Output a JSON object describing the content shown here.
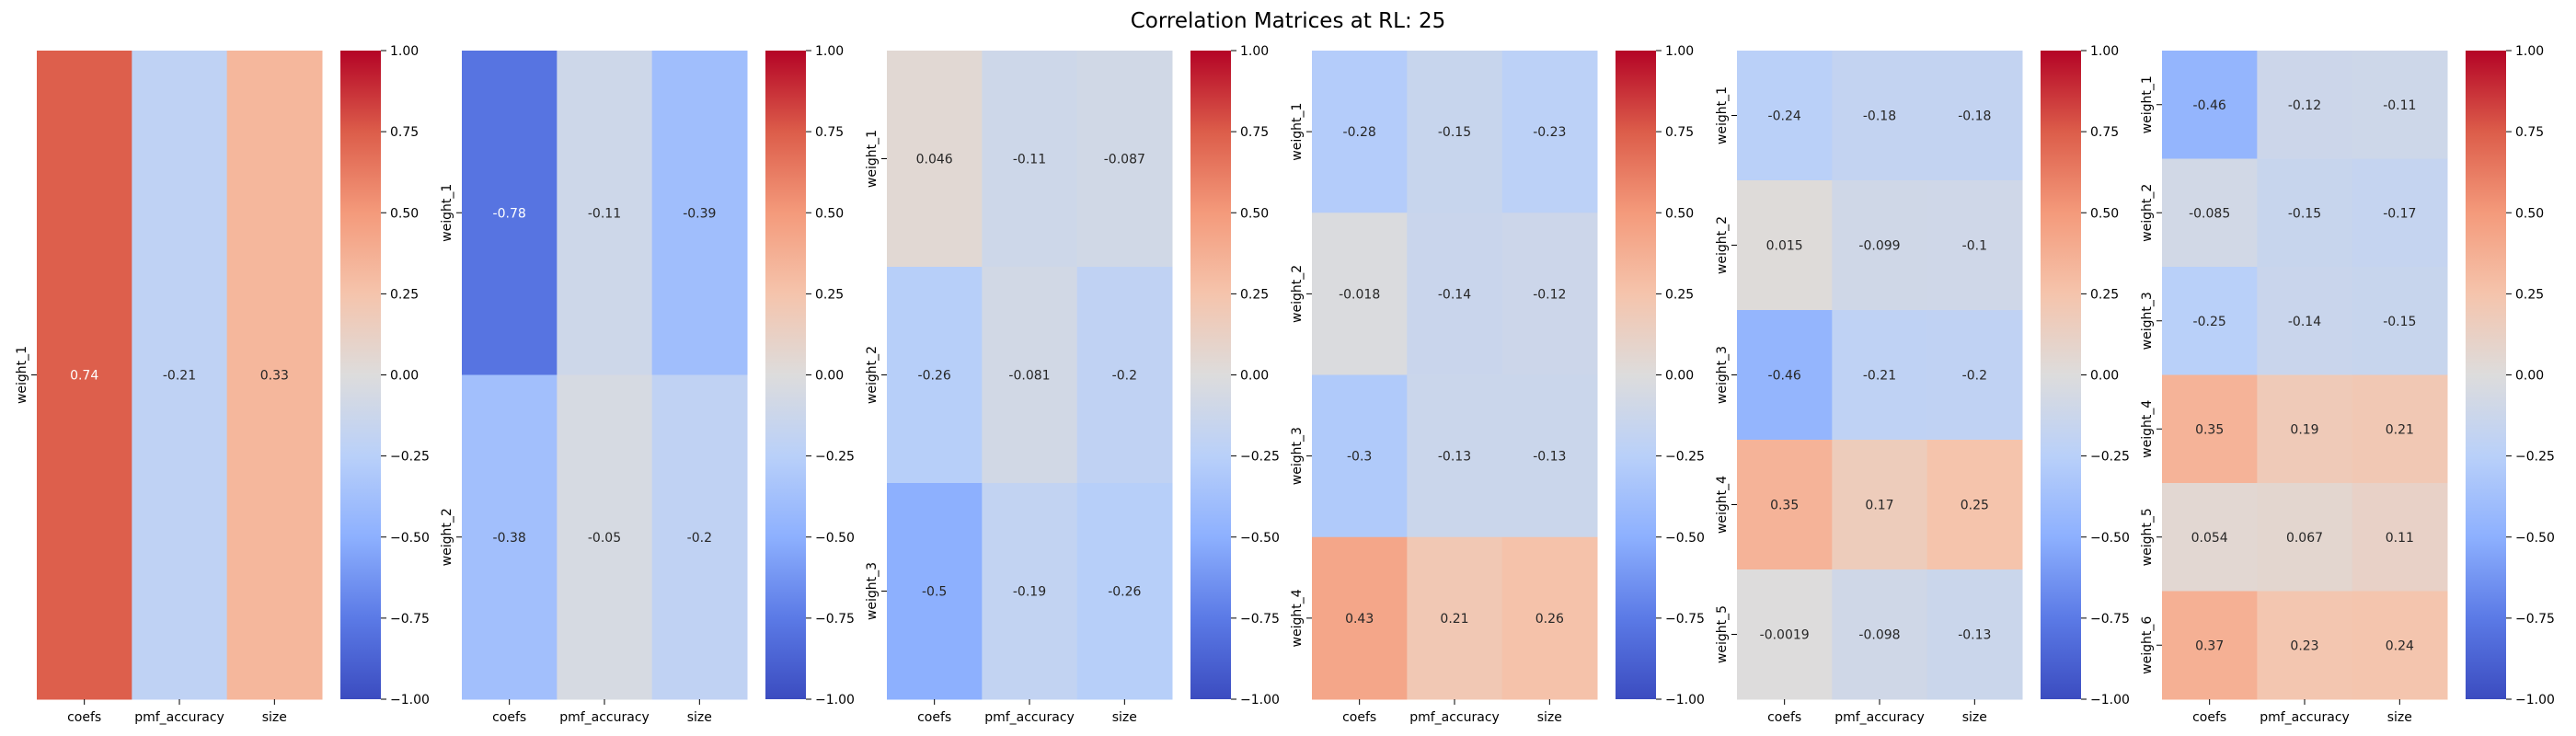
{
  "figure": {
    "title": "Correlation Matrices at RL: 25",
    "colormap": "coolwarm",
    "vmin": -1.0,
    "vmax": 1.0,
    "colorbar_ticks": [
      "1.00",
      "0.75",
      "0.50",
      "0.25",
      "0.00",
      "−0.25",
      "−0.50",
      "−0.75",
      "−1.00"
    ],
    "colorbar_tick_values": [
      1.0,
      0.75,
      0.5,
      0.25,
      0.0,
      -0.25,
      -0.5,
      -0.75,
      -1.0
    ]
  },
  "chart_data": [
    {
      "type": "heatmap",
      "columns": [
        "coefs",
        "pmf_accuracy",
        "size"
      ],
      "rows": [
        "weight_1"
      ],
      "values": [
        [
          0.74,
          -0.21,
          0.33
        ]
      ],
      "labels": [
        [
          "0.74",
          "-0.21",
          "0.33"
        ]
      ]
    },
    {
      "type": "heatmap",
      "columns": [
        "coefs",
        "pmf_accuracy",
        "size"
      ],
      "rows": [
        "weight_1",
        "weight_2"
      ],
      "values": [
        [
          -0.78,
          -0.11,
          -0.39
        ],
        [
          -0.38,
          -0.05,
          -0.2
        ]
      ],
      "labels": [
        [
          "-0.78",
          "-0.11",
          "-0.39"
        ],
        [
          "-0.38",
          "-0.05",
          "-0.2"
        ]
      ]
    },
    {
      "type": "heatmap",
      "columns": [
        "coefs",
        "pmf_accuracy",
        "size"
      ],
      "rows": [
        "weight_1",
        "weight_2",
        "weight_3"
      ],
      "values": [
        [
          0.046,
          -0.11,
          -0.087
        ],
        [
          -0.26,
          -0.081,
          -0.2
        ],
        [
          -0.5,
          -0.19,
          -0.26
        ]
      ],
      "labels": [
        [
          "0.046",
          "-0.11",
          "-0.087"
        ],
        [
          "-0.26",
          "-0.081",
          "-0.2"
        ],
        [
          "-0.5",
          "-0.19",
          "-0.26"
        ]
      ]
    },
    {
      "type": "heatmap",
      "columns": [
        "coefs",
        "pmf_accuracy",
        "size"
      ],
      "rows": [
        "weight_1",
        "weight_2",
        "weight_3",
        "weight_4"
      ],
      "values": [
        [
          -0.28,
          -0.15,
          -0.23
        ],
        [
          -0.018,
          -0.14,
          -0.12
        ],
        [
          -0.3,
          -0.13,
          -0.13
        ],
        [
          0.43,
          0.21,
          0.26
        ]
      ],
      "labels": [
        [
          "-0.28",
          "-0.15",
          "-0.23"
        ],
        [
          "-0.018",
          "-0.14",
          "-0.12"
        ],
        [
          "-0.3",
          "-0.13",
          "-0.13"
        ],
        [
          "0.43",
          "0.21",
          "0.26"
        ]
      ]
    },
    {
      "type": "heatmap",
      "columns": [
        "coefs",
        "pmf_accuracy",
        "size"
      ],
      "rows": [
        "weight_1",
        "weight_2",
        "weight_3",
        "weight_4",
        "weight_5"
      ],
      "values": [
        [
          -0.24,
          -0.18,
          -0.18
        ],
        [
          0.015,
          -0.099,
          -0.1
        ],
        [
          -0.46,
          -0.21,
          -0.2
        ],
        [
          0.35,
          0.17,
          0.25
        ],
        [
          -0.0019,
          -0.098,
          -0.13
        ]
      ],
      "labels": [
        [
          "-0.24",
          "-0.18",
          "-0.18"
        ],
        [
          "0.015",
          "-0.099",
          "-0.1"
        ],
        [
          "-0.46",
          "-0.21",
          "-0.2"
        ],
        [
          "0.35",
          "0.17",
          "0.25"
        ],
        [
          "-0.0019",
          "-0.098",
          "-0.13"
        ]
      ]
    },
    {
      "type": "heatmap",
      "columns": [
        "coefs",
        "pmf_accuracy",
        "size"
      ],
      "rows": [
        "weight_1",
        "weight_2",
        "weight_3",
        "weight_4",
        "weight_5",
        "weight_6"
      ],
      "values": [
        [
          -0.46,
          -0.12,
          -0.11
        ],
        [
          -0.085,
          -0.15,
          -0.17
        ],
        [
          -0.25,
          -0.14,
          -0.15
        ],
        [
          0.35,
          0.19,
          0.21
        ],
        [
          0.054,
          0.067,
          0.11
        ],
        [
          0.37,
          0.23,
          0.24
        ]
      ],
      "labels": [
        [
          "-0.46",
          "-0.12",
          "-0.11"
        ],
        [
          "-0.085",
          "-0.15",
          "-0.17"
        ],
        [
          "-0.25",
          "-0.14",
          "-0.15"
        ],
        [
          "0.35",
          "0.19",
          "0.21"
        ],
        [
          "0.054",
          "0.067",
          "0.11"
        ],
        [
          "0.37",
          "0.23",
          "0.24"
        ]
      ]
    }
  ]
}
